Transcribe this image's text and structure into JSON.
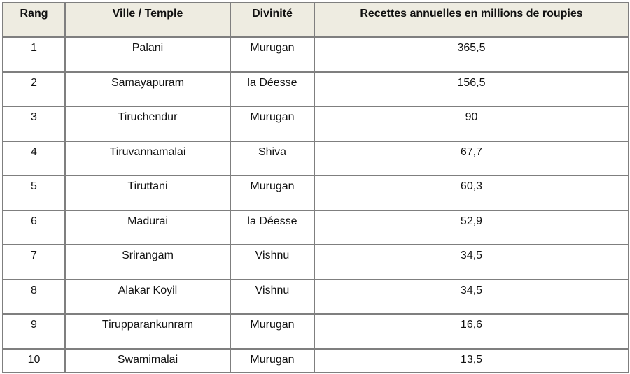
{
  "table": {
    "headers": [
      "Rang",
      "Ville / Temple",
      "Divinité",
      "Recettes annuelles en millions de roupies"
    ],
    "rows": [
      [
        "1",
        "Palani",
        "Murugan",
        "365,5"
      ],
      [
        "2",
        "Samayapuram",
        "la Déesse",
        "156,5"
      ],
      [
        "3",
        "Tiruchendur",
        "Murugan",
        "90"
      ],
      [
        "4",
        "Tiruvannamalai",
        "Shiva",
        "67,7"
      ],
      [
        "5",
        "Tiruttani",
        "Murugan",
        "60,3"
      ],
      [
        "6",
        "Madurai",
        "la Déesse",
        "52,9"
      ],
      [
        "7",
        "Srirangam",
        "Vishnu",
        "34,5"
      ],
      [
        "8",
        "Alakar Koyil",
        "Vishnu",
        "34,5"
      ],
      [
        "9",
        "Tirupparankunram",
        "Murugan",
        "16,6"
      ],
      [
        "10",
        "Swamimalai",
        "Murugan",
        "13,5"
      ]
    ]
  }
}
